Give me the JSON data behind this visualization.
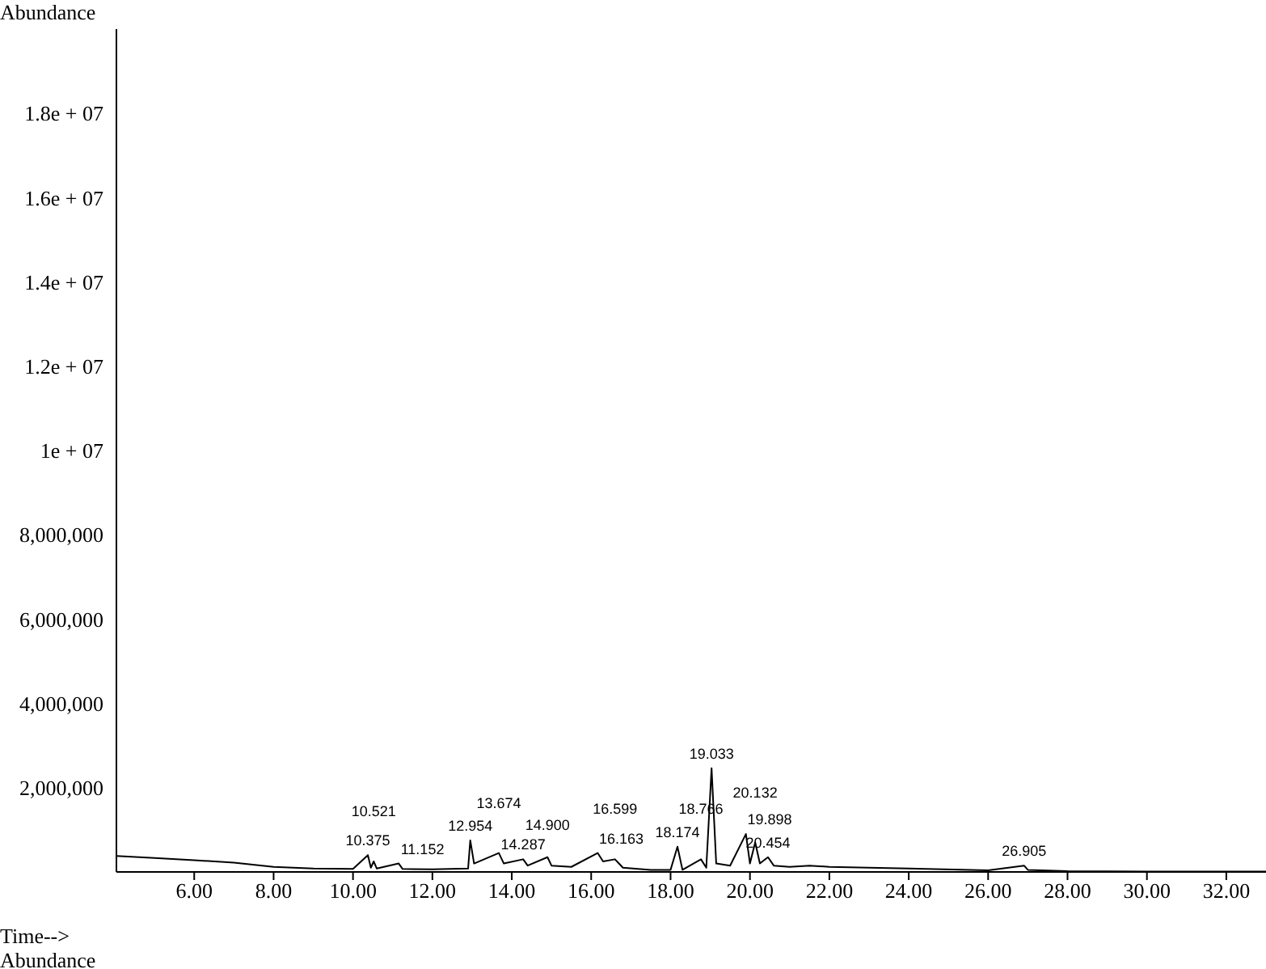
{
  "chart_data": {
    "type": "line",
    "ylabel": "Abundance",
    "xlabel": "Time-->",
    "annotations": [
      "Abundance",
      {
        "text": "10.375",
        "x": 10.375,
        "y": 400000
      },
      {
        "text": "10.521",
        "x": 10.521,
        "y": 250000
      },
      {
        "text": "11.152",
        "x": 11.152,
        "y": 200000
      },
      {
        "text": "12.954",
        "x": 12.954,
        "y": 750000
      },
      {
        "text": "13.674",
        "x": 13.674,
        "y": 450000
      },
      {
        "text": "14.287",
        "x": 14.287,
        "y": 300000
      },
      {
        "text": "14.900",
        "x": 14.9,
        "y": 350000
      },
      {
        "text": "16.163",
        "x": 16.163,
        "y": 450000
      },
      {
        "text": "16.599",
        "x": 16.599,
        "y": 300000
      },
      {
        "text": "18.174",
        "x": 18.174,
        "y": 600000
      },
      {
        "text": "18.766",
        "x": 18.766,
        "y": 300000
      },
      {
        "text": "19.033",
        "x": 19.033,
        "y": 2460000
      },
      {
        "text": "19.898",
        "x": 19.898,
        "y": 900000
      },
      {
        "text": "20.132",
        "x": 20.132,
        "y": 700000
      },
      {
        "text": "20.454",
        "x": 20.454,
        "y": 350000
      },
      {
        "text": "26.905",
        "x": 26.905,
        "y": 150000
      }
    ],
    "x": [
      4.04,
      5,
      6,
      7,
      8,
      9,
      10,
      10.375,
      10.45,
      10.521,
      10.6,
      11.152,
      11.25,
      12,
      12.9,
      12.954,
      13.05,
      13.674,
      13.8,
      14.287,
      14.4,
      14.9,
      15,
      15.5,
      16.163,
      16.3,
      16.599,
      16.8,
      17.5,
      18,
      18.174,
      18.3,
      18.766,
      18.9,
      19.033,
      19.15,
      19.5,
      19.898,
      20,
      20.132,
      20.25,
      20.454,
      20.6,
      21,
      21.5,
      22,
      24,
      26,
      26.905,
      27,
      28,
      30,
      33
    ],
    "series": [
      {
        "color": "#000000",
        "values": [
          380000,
          330000,
          280000,
          220000,
          120000,
          80000,
          70000,
          400000,
          100000,
          250000,
          80000,
          200000,
          70000,
          60000,
          80000,
          750000,
          200000,
          450000,
          200000,
          300000,
          150000,
          350000,
          150000,
          120000,
          450000,
          250000,
          300000,
          100000,
          50000,
          50000,
          600000,
          50000,
          300000,
          100000,
          2460000,
          200000,
          150000,
          900000,
          200000,
          700000,
          200000,
          350000,
          150000,
          120000,
          150000,
          120000,
          80000,
          40000,
          150000,
          50000,
          20000,
          10000,
          10000
        ]
      }
    ],
    "xlim": [
      4.04,
      33
    ],
    "xticks": [
      {
        "value": 6,
        "label": "6.00"
      },
      {
        "value": 8,
        "label": "8.00"
      },
      {
        "value": 10,
        "label": "10.00"
      },
      {
        "value": 12,
        "label": "12.00"
      },
      {
        "value": 14,
        "label": "14.00"
      },
      {
        "value": 16,
        "label": "16.00"
      },
      {
        "value": 18,
        "label": "18.00"
      },
      {
        "value": 20,
        "label": "20.00"
      },
      {
        "value": 22,
        "label": "22.00"
      },
      {
        "value": 24,
        "label": "24.00"
      },
      {
        "value": 26,
        "label": "26.00"
      },
      {
        "value": 28,
        "label": "28.00"
      },
      {
        "value": 30,
        "label": "30.00"
      },
      {
        "value": 32,
        "label": "32.00"
      }
    ],
    "ylim": [
      0,
      20000000
    ],
    "yticks": [
      {
        "value": 2000000,
        "label": "2,000,000"
      },
      {
        "value": 4000000,
        "label": "4,000,000"
      },
      {
        "value": 6000000,
        "label": "6,000,000"
      },
      {
        "value": 8000000,
        "label": "8,000,000"
      },
      {
        "value": 10000000,
        "label": "1e + 07"
      },
      {
        "value": 12000000,
        "label": "1.2e + 07"
      },
      {
        "value": 14000000,
        "label": "1.4e + 07"
      },
      {
        "value": 16000000,
        "label": "1.6e + 07"
      },
      {
        "value": 18000000,
        "label": "1.8e + 07"
      }
    ],
    "grid": false,
    "legend": false,
    "marker": "none",
    "line_style": "solid"
  }
}
